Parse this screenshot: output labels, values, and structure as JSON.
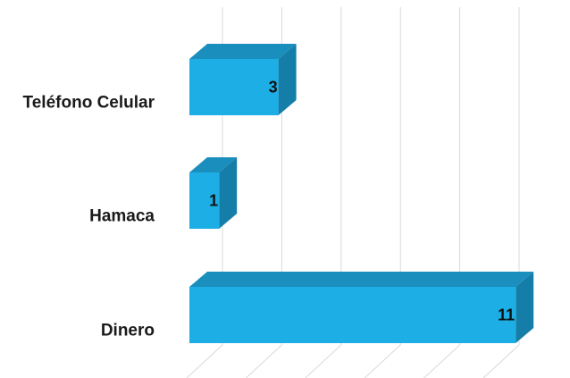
{
  "chart_data": {
    "type": "bar",
    "orientation": "horizontal",
    "style": "3d",
    "categories": [
      "Teléfono Celular",
      "Hamaca",
      "Dinero"
    ],
    "values": [
      3,
      1,
      11
    ],
    "data_labels": [
      "3",
      "1",
      "11"
    ],
    "xlim": [
      0,
      12
    ],
    "grid": true,
    "legend": "none",
    "colors": {
      "bar_front": "#1eaee6",
      "bar_top": "#1a8fbd",
      "bar_side": "#157ea8",
      "gridline": "#d9d9d9"
    }
  }
}
